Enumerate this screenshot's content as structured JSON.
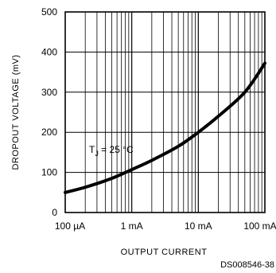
{
  "chart_data": {
    "type": "line",
    "title": "",
    "xlabel": "OUTPUT CURRENT",
    "ylabel": "DROPOUT VOLTAGE (mV)",
    "x_scale": "log",
    "x_unit": "A",
    "xlim": [
      0.0001,
      0.1
    ],
    "ylim": [
      0,
      500
    ],
    "y_ticks": [
      0,
      100,
      200,
      300,
      400,
      500
    ],
    "x_tick_values": [
      0.0001,
      0.001,
      0.01,
      0.1
    ],
    "x_tick_labels": [
      "100 µA",
      "1 mA",
      "10 mA",
      "100 mA"
    ],
    "grid": true,
    "series": [
      {
        "x": [
          0.0001,
          0.0002,
          0.0005,
          0.001,
          0.002,
          0.005,
          0.01,
          0.02,
          0.05,
          0.1
        ],
        "y": [
          50,
          63,
          85,
          107,
          130,
          165,
          200,
          240,
          300,
          372
        ]
      }
    ],
    "annotation": {
      "main": "T",
      "sub": "J",
      "rest": " = 25 °C"
    },
    "doc_id": "DS008546-38"
  }
}
